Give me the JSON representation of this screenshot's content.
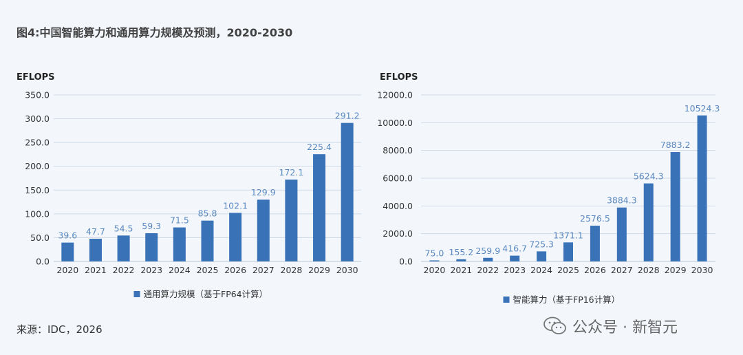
{
  "title": "图4:中国智能算力和通用算力规模及预测，2020-2030",
  "source": "来源：IDC，2026",
  "watermark": "公众号 · 新智元",
  "colors": {
    "bar": "#3a72b8",
    "label": "#5a88c0",
    "grid": "#cfd9e6",
    "axis_text": "#333333"
  },
  "chart_data": [
    {
      "type": "bar",
      "unit_label": "EFLOPS",
      "categories": [
        "2020",
        "2021",
        "2022",
        "2023",
        "2024",
        "2025",
        "2026",
        "2027",
        "2028",
        "2029",
        "2030"
      ],
      "series": [
        {
          "name": "通用算力规模（基于FP64计算）",
          "values": [
            39.6,
            47.7,
            54.5,
            59.3,
            71.5,
            85.8,
            102.1,
            129.9,
            172.1,
            225.4,
            291.2
          ]
        }
      ],
      "value_labels": [
        "39.6",
        "47.7",
        "54.5",
        "59.3",
        "71.5",
        "85.8",
        "102.1",
        "129.9",
        "172.1",
        "225.4",
        "291.2"
      ],
      "ylim": [
        0,
        350
      ],
      "yticks": [
        "0.0",
        "50.0",
        "100.0",
        "150.0",
        "200.0",
        "250.0",
        "300.0",
        "350.0"
      ],
      "ytick_values": [
        0,
        50,
        100,
        150,
        200,
        250,
        300,
        350
      ],
      "legend": "bottom",
      "grid": true
    },
    {
      "type": "bar",
      "unit_label": "EFLOPS",
      "categories": [
        "2020",
        "2021",
        "2022",
        "2023",
        "2024",
        "2025",
        "2026",
        "2027",
        "2028",
        "2029",
        "2030"
      ],
      "series": [
        {
          "name": "智能算力（基于FP16计算）",
          "values": [
            75.0,
            155.2,
            259.9,
            416.7,
            725.3,
            1371.1,
            2576.5,
            3884.3,
            5624.3,
            7883.2,
            10524.3
          ]
        }
      ],
      "value_labels": [
        "75.0",
        "155.2",
        "259.9",
        "416.7",
        "725.3",
        "1371.1",
        "2576.5",
        "3884.3",
        "5624.3",
        "7883.2",
        "10524.3"
      ],
      "ylim": [
        0,
        12000
      ],
      "yticks": [
        "0.0",
        "2000.0",
        "4000.0",
        "6000.0",
        "8000.0",
        "10000.0",
        "12000.0"
      ],
      "ytick_values": [
        0,
        2000,
        4000,
        6000,
        8000,
        10000,
        12000
      ],
      "legend": "bottom",
      "grid": true
    }
  ]
}
